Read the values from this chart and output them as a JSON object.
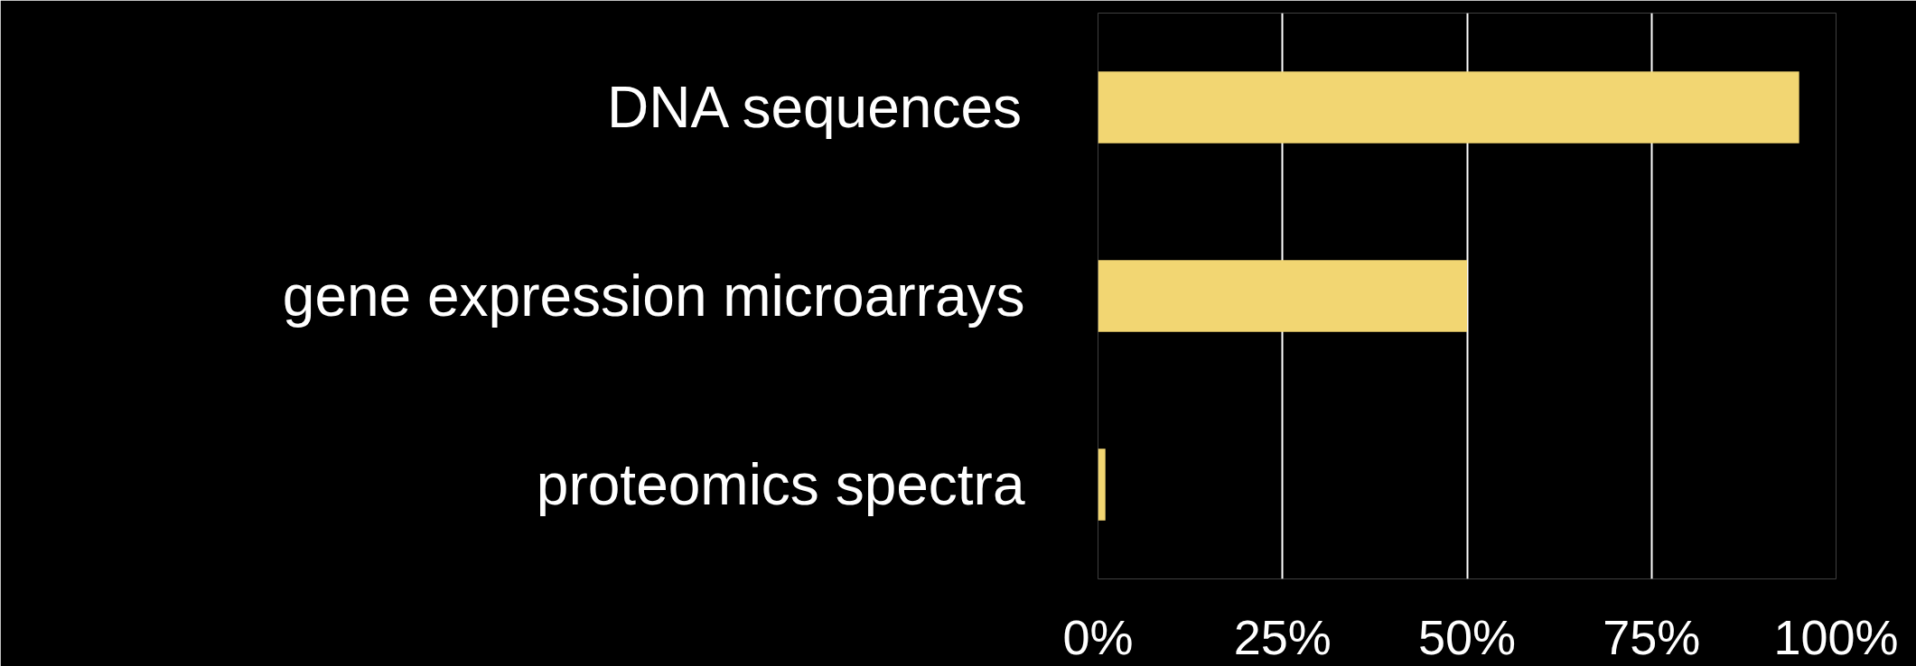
{
  "chart_data": {
    "type": "bar",
    "orientation": "horizontal",
    "categories": [
      "DNA sequences",
      "gene expression microarrays",
      "proteomics spectra"
    ],
    "values": [
      95,
      50,
      1
    ],
    "color": "#f2d672",
    "xlim": [
      0,
      100
    ],
    "xticks": [
      {
        "value": 0,
        "label": "0%"
      },
      {
        "value": 25,
        "label": "25%"
      },
      {
        "value": 50,
        "label": "50%"
      },
      {
        "value": 75,
        "label": "75%"
      },
      {
        "value": 100,
        "label": "100%"
      }
    ],
    "grid": "x"
  }
}
